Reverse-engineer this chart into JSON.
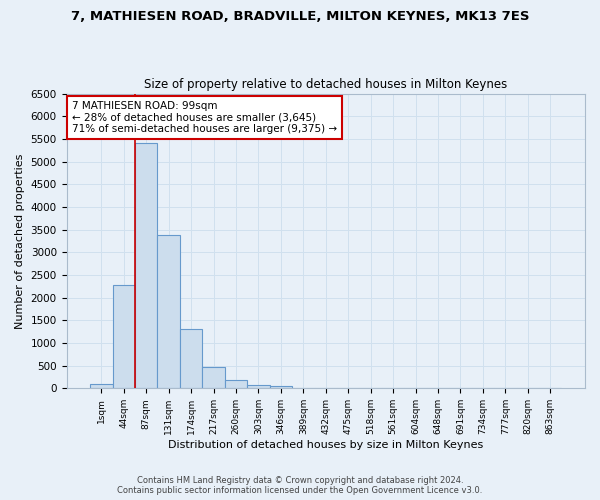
{
  "title": "7, MATHIESEN ROAD, BRADVILLE, MILTON KEYNES, MK13 7ES",
  "subtitle": "Size of property relative to detached houses in Milton Keynes",
  "xlabel": "Distribution of detached houses by size in Milton Keynes",
  "ylabel": "Number of detached properties",
  "bar_color": "#ccdded",
  "bar_edge_color": "#6699cc",
  "grid_color": "#d0e0ee",
  "background_color": "#e8f0f8",
  "categories": [
    "1sqm",
    "44sqm",
    "87sqm",
    "131sqm",
    "174sqm",
    "217sqm",
    "260sqm",
    "303sqm",
    "346sqm",
    "389sqm",
    "432sqm",
    "475sqm",
    "518sqm",
    "561sqm",
    "604sqm",
    "648sqm",
    "691sqm",
    "734sqm",
    "777sqm",
    "820sqm",
    "863sqm"
  ],
  "bar_heights": [
    90,
    2280,
    5420,
    3380,
    1300,
    470,
    185,
    80,
    50,
    0,
    0,
    0,
    0,
    0,
    0,
    0,
    0,
    0,
    0,
    0,
    0
  ],
  "ylim": [
    0,
    6500
  ],
  "yticks": [
    0,
    500,
    1000,
    1500,
    2000,
    2500,
    3000,
    3500,
    4000,
    4500,
    5000,
    5500,
    6000,
    6500
  ],
  "property_label": "7 MATHIESEN ROAD: 99sqm",
  "annotation_line1": "← 28% of detached houses are smaller (3,645)",
  "annotation_line2": "71% of semi-detached houses are larger (9,375) →",
  "annotation_box_color": "#ffffff",
  "annotation_border_color": "#cc0000",
  "red_line_bar_index": 2,
  "footer_line1": "Contains HM Land Registry data © Crown copyright and database right 2024.",
  "footer_line2": "Contains public sector information licensed under the Open Government Licence v3.0."
}
